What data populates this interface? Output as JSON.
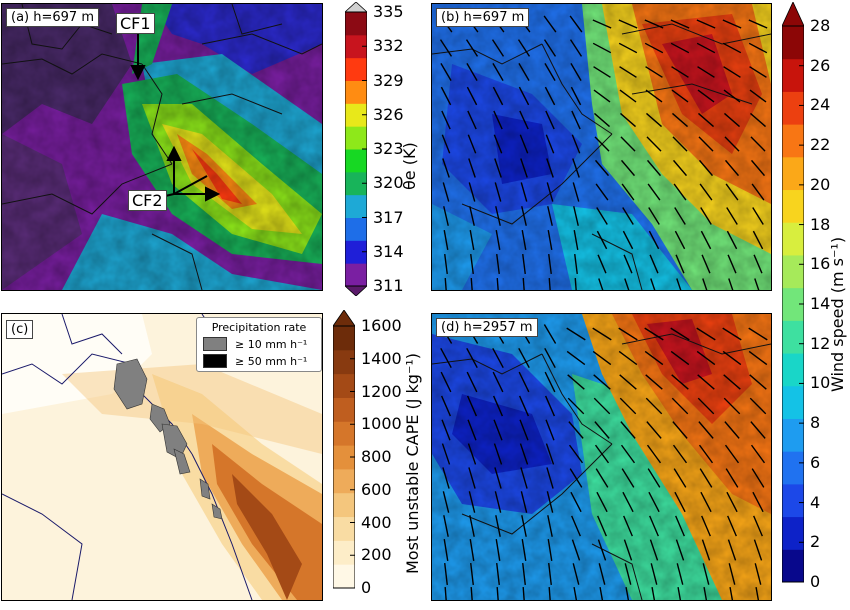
{
  "panels": {
    "a": {
      "label": "(a) h=697 m",
      "front_labels": [
        "CF1",
        "CF2"
      ]
    },
    "b": {
      "label": "(b) h=697 m"
    },
    "c": {
      "label": "(c)",
      "legend": {
        "title": "Precipitation rate",
        "items": [
          {
            "label": "≥  10 mm h⁻¹",
            "color": "#808080"
          },
          {
            "label": "≥  50 mm h⁻¹",
            "color": "#000000"
          }
        ]
      }
    },
    "d": {
      "label": "(d) h=2957 m"
    }
  },
  "chart_data": [
    {
      "type": "heatmap",
      "panel": "a",
      "colorbar": {
        "ticks": [
          311,
          314,
          317,
          320,
          323,
          326,
          329,
          332,
          335
        ],
        "label": "θe (K)",
        "range": [
          311,
          335
        ],
        "colors": [
          "#7a1fa2",
          "#1f1fd8",
          "#1e6ee8",
          "#1ea9d6",
          "#18b45a",
          "#17d823",
          "#8ee81a",
          "#e8e81a",
          "#ff8c12",
          "#ff3a10",
          "#c8141e",
          "#8c0a14"
        ]
      }
    },
    {
      "type": "heatmap",
      "panel": "b"
    },
    {
      "type": "heatmap",
      "panel": "c",
      "colorbar": {
        "ticks": [
          0,
          200,
          400,
          600,
          800,
          1000,
          1200,
          1400,
          1600
        ],
        "label": "Most unstable CAPE (J kg⁻¹)",
        "range": [
          0,
          1600
        ],
        "colors": [
          "#fff8e6",
          "#fdedc8",
          "#f9dca3",
          "#f4c67d",
          "#eeab5a",
          "#e4903b",
          "#d5762a",
          "#bf5e1f",
          "#a44a16",
          "#883a10",
          "#6d2c0a"
        ]
      }
    },
    {
      "type": "heatmap",
      "panel": "d",
      "colorbar": {
        "ticks": [
          0,
          2,
          4,
          6,
          8,
          10,
          12,
          14,
          16,
          18,
          20,
          22,
          24,
          26,
          28
        ],
        "label": "Wind speed (m s⁻¹)",
        "range": [
          0,
          28
        ],
        "colors": [
          "#08088c",
          "#0d22c8",
          "#1c48e8",
          "#2072f0",
          "#1e9cf0",
          "#14c2e6",
          "#19d6c8",
          "#3ee0a0",
          "#72e67a",
          "#a6ea5a",
          "#d8ee3e",
          "#f8d41e",
          "#fba818",
          "#f87614",
          "#ec4010",
          "#c8140c",
          "#8c0606"
        ]
      }
    }
  ]
}
